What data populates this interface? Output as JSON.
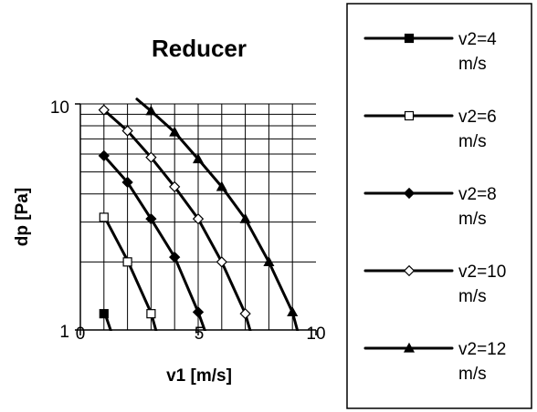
{
  "chart_data": {
    "type": "line",
    "title": "Reducer",
    "xlabel": "v1 [m/s]",
    "ylabel": "dp [Pa]",
    "xlim": [
      0,
      10
    ],
    "ylim": [
      1,
      10
    ],
    "yscale": "log",
    "x_ticks": [
      0,
      5,
      10
    ],
    "y_ticks": [
      1,
      10
    ],
    "grid": true,
    "legend_position": "right",
    "series": [
      {
        "name": "v2=4",
        "label_lines": [
          "v2=4",
          "m/s"
        ],
        "marker": "filled-square",
        "line_x": [
          1.0,
          1.4
        ],
        "line_y": [
          1.22,
          0.92
        ],
        "points": [
          {
            "x": 1,
            "y": 1.18
          }
        ]
      },
      {
        "name": "v2=6",
        "label_lines": [
          "v2=6",
          "m/s"
        ],
        "marker": "open-square",
        "line_x": [
          1.0,
          2.0,
          3.0,
          3.3
        ],
        "line_y": [
          3.2,
          2.03,
          1.19,
          0.92
        ],
        "points": [
          {
            "x": 1,
            "y": 3.15
          },
          {
            "x": 2,
            "y": 2.0
          },
          {
            "x": 3,
            "y": 1.18
          }
        ]
      },
      {
        "name": "v2=8",
        "label_lines": [
          "v2=8",
          "m/s"
        ],
        "marker": "filled-diamond",
        "line_x": [
          1.0,
          2.0,
          3.0,
          4.0,
          5.0,
          5.4
        ],
        "line_y": [
          5.9,
          4.5,
          3.1,
          2.1,
          1.2,
          0.92
        ],
        "points": [
          {
            "x": 1,
            "y": 5.9
          },
          {
            "x": 2,
            "y": 4.5
          },
          {
            "x": 3,
            "y": 3.1
          },
          {
            "x": 4,
            "y": 2.1
          },
          {
            "x": 5,
            "y": 1.2
          }
        ]
      },
      {
        "name": "v2=10",
        "label_lines": [
          "v2=10",
          "m/s"
        ],
        "marker": "open-diamond",
        "line_x": [
          1.0,
          2.0,
          3.0,
          4.0,
          5.0,
          6.0,
          7.0,
          7.3
        ],
        "line_y": [
          9.4,
          7.6,
          5.8,
          4.3,
          3.1,
          2.0,
          1.18,
          0.92
        ],
        "points": [
          {
            "x": 1,
            "y": 9.4
          },
          {
            "x": 2,
            "y": 7.6
          },
          {
            "x": 3,
            "y": 5.8
          },
          {
            "x": 4,
            "y": 4.3
          },
          {
            "x": 5,
            "y": 3.1
          },
          {
            "x": 6,
            "y": 2.0
          },
          {
            "x": 7,
            "y": 1.18
          }
        ]
      },
      {
        "name": "v2=12",
        "label_lines": [
          "v2=12",
          "m/s"
        ],
        "marker": "filled-triangle",
        "line_x": [
          2.4,
          3.0,
          4.0,
          5.0,
          6.0,
          7.0,
          8.0,
          9.0,
          9.3
        ],
        "line_y": [
          10.5,
          9.3,
          7.5,
          5.7,
          4.3,
          3.1,
          2.0,
          1.2,
          0.92
        ],
        "points": [
          {
            "x": 3,
            "y": 9.3
          },
          {
            "x": 4,
            "y": 7.5
          },
          {
            "x": 5,
            "y": 5.7
          },
          {
            "x": 6,
            "y": 4.3
          },
          {
            "x": 7,
            "y": 3.1
          },
          {
            "x": 8,
            "y": 2.0
          },
          {
            "x": 9,
            "y": 1.2
          }
        ]
      }
    ]
  }
}
